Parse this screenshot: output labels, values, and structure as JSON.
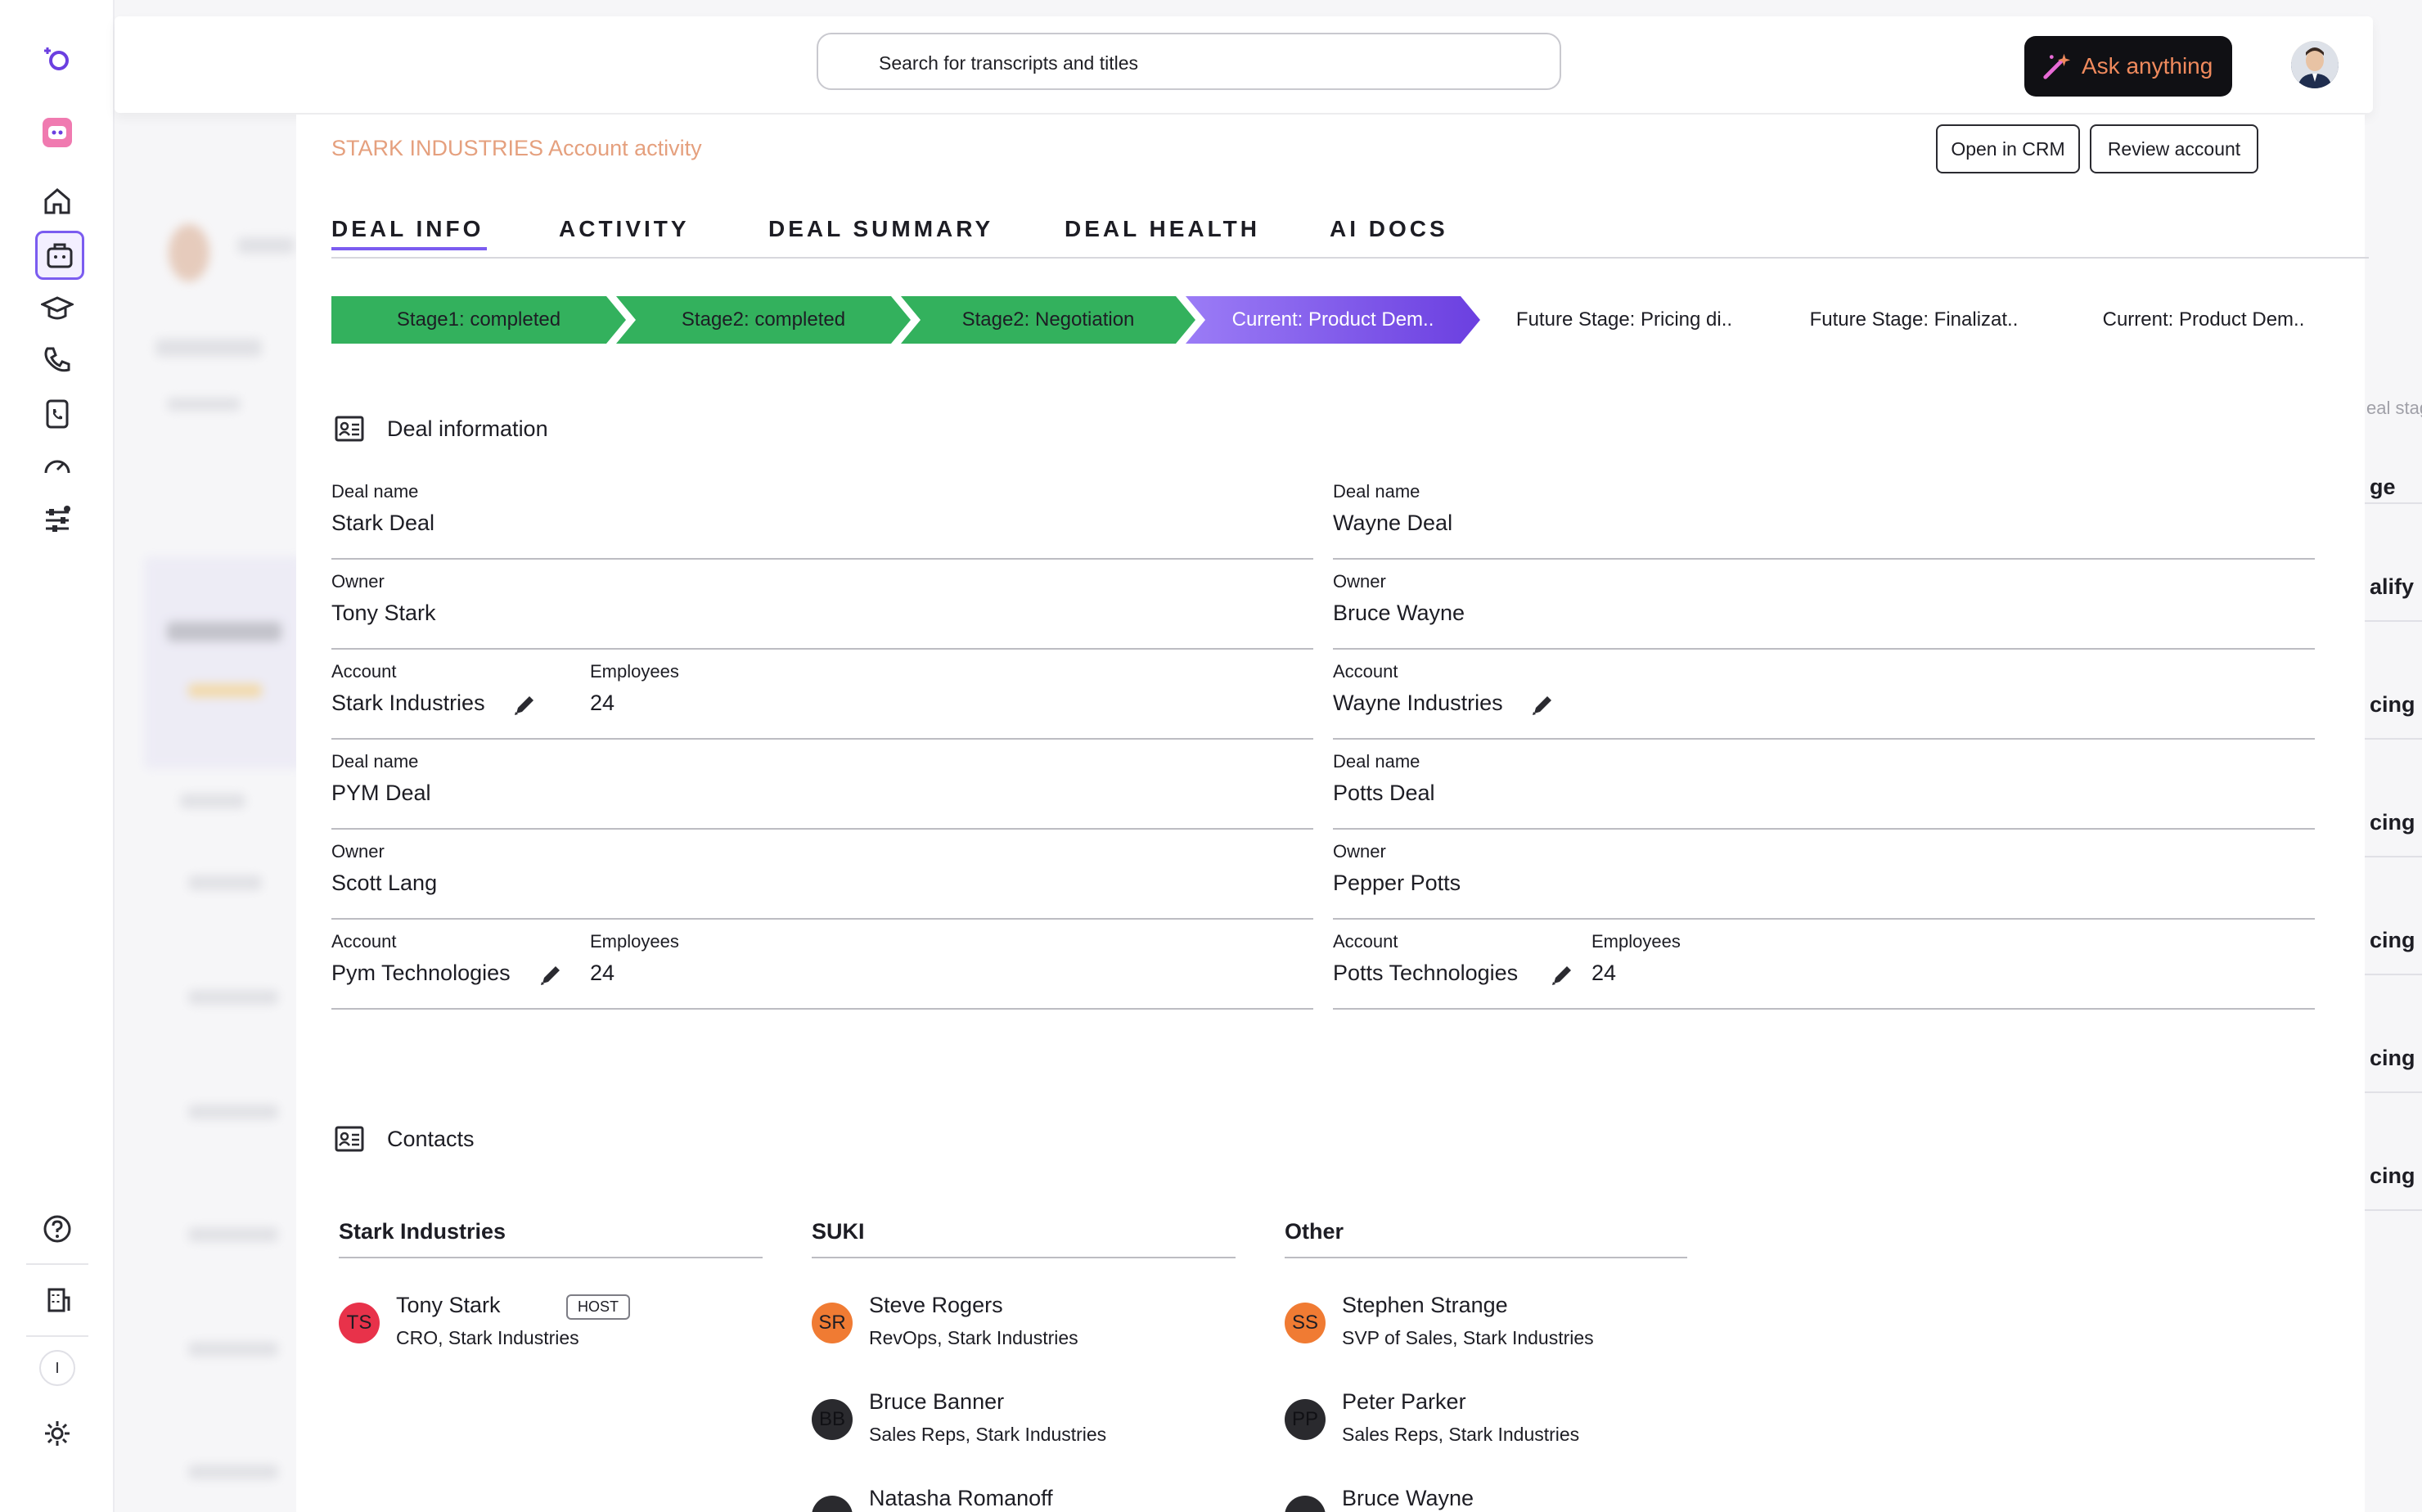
{
  "search": {
    "placeholder": "Search for transcripts and titles"
  },
  "ask_button": {
    "label": "Ask anything"
  },
  "header": {
    "breadcrumb": "STARK INDUSTRIES Account activity",
    "open_crm": "Open in CRM",
    "review_account": "Review account"
  },
  "tabs": [
    "DEAL INFO",
    "ACTIVITY",
    "DEAL SUMMARY",
    "DEAL HEALTH",
    "AI DOCS"
  ],
  "stages": [
    {
      "label": "Stage1: completed",
      "status": "completed"
    },
    {
      "label": "Stage2: completed",
      "status": "completed"
    },
    {
      "label": "Stage2: Negotiation",
      "status": "completed"
    },
    {
      "label": "Current: Product Dem..",
      "status": "current"
    },
    {
      "label": "Future Stage: Pricing di..",
      "status": "future"
    },
    {
      "label": "Future Stage: Finalizat..",
      "status": "future"
    },
    {
      "label": "Current: Product Dem..",
      "status": "future"
    }
  ],
  "deal_info": {
    "title": "Deal information",
    "left": [
      {
        "label": "Deal name",
        "value": "Stark Deal"
      },
      {
        "label": "Owner",
        "value": "Tony Stark"
      },
      {
        "label": "Account",
        "value": "Stark Industries",
        "emp_label": "Employees",
        "emp_value": "24"
      },
      {
        "label": "Deal name",
        "value": "PYM Deal"
      },
      {
        "label": "Owner",
        "value": "Scott Lang"
      },
      {
        "label": "Account",
        "value": "Pym Technologies",
        "emp_label": "Employees",
        "emp_value": "24"
      }
    ],
    "right": [
      {
        "label": "Deal name",
        "value": "Wayne Deal"
      },
      {
        "label": "Owner",
        "value": "Bruce Wayne"
      },
      {
        "label": "Account",
        "value": "Wayne Industries"
      },
      {
        "label": "Deal name",
        "value": "Potts Deal"
      },
      {
        "label": "Owner",
        "value": "Pepper Potts"
      },
      {
        "label": "Account",
        "value": "Potts Technologies",
        "emp_label": "Employees",
        "emp_value": "24"
      }
    ]
  },
  "contacts": {
    "title": "Contacts",
    "host_badge": "HOST",
    "columns": [
      {
        "heading": "Stark Industries",
        "people": [
          {
            "initials": "TS",
            "name": "Tony Stark",
            "role": "CRO, Stark Industries",
            "color": "#e8324a",
            "host": true
          }
        ]
      },
      {
        "heading": "SUKI",
        "people": [
          {
            "initials": "SR",
            "name": "Steve Rogers",
            "role": "RevOps, Stark Industries",
            "color": "#f07b33"
          },
          {
            "initials": "BB",
            "name": "Bruce Banner",
            "role": "Sales Reps, Stark Industries",
            "color": "#2a2a2e"
          },
          {
            "initials": "",
            "name": "Natasha Romanoff",
            "role": "",
            "color": "#2a2a2e"
          }
        ]
      },
      {
        "heading": "Other",
        "people": [
          {
            "initials": "SS",
            "name": "Stephen Strange",
            "role": "SVP of Sales, Stark Industries",
            "color": "#f07b33"
          },
          {
            "initials": "PP",
            "name": "Peter Parker",
            "role": "Sales Reps, Stark Industries",
            "color": "#2a2a2e"
          },
          {
            "initials": "",
            "name": "Bruce Wayne",
            "role": "",
            "color": "#2a2a2e"
          }
        ]
      }
    ]
  },
  "right_col": [
    "ge",
    "alify",
    "cing D",
    "cing D",
    "cing D",
    "cing D",
    "cing D"
  ],
  "right_stub": "eal stag",
  "sidebar": {
    "user_initial": "I"
  },
  "colors": {
    "accent": "#7b5cf0",
    "completed": "#33b15d",
    "breadcrumb": "#e5a07e"
  }
}
